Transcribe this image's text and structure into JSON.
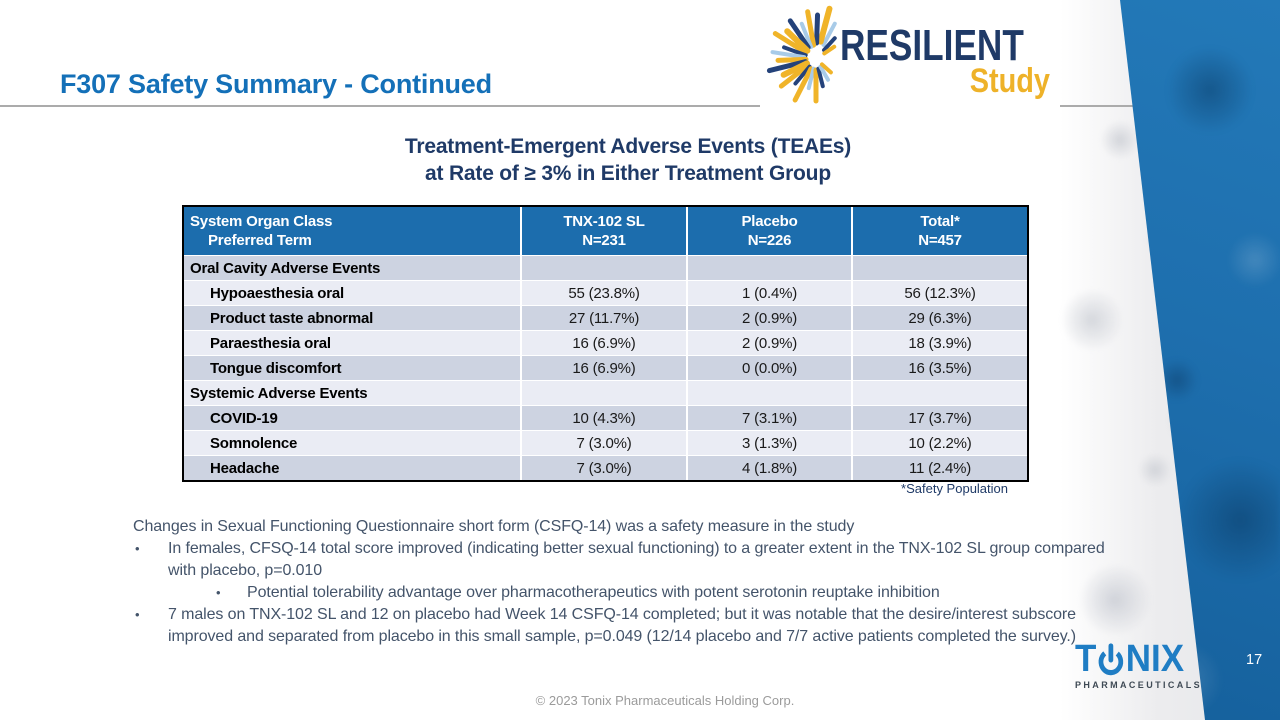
{
  "slide": {
    "title": "F307 Safety Summary - Continued",
    "page_number": "17",
    "footer": "© 2023 Tonix Pharmaceuticals Holding Corp."
  },
  "resilient_logo": {
    "name": "RESILIENT",
    "sub": "Study"
  },
  "table": {
    "title_line1": "Treatment-Emergent Adverse Events (TEAEs)",
    "title_line2": "at Rate of ≥ 3% in Either Treatment Group",
    "header": {
      "col1_line1": "System Organ Class",
      "col1_line2": "Preferred Term",
      "cols": [
        {
          "line1": "TNX-102 SL",
          "line2": "N=231"
        },
        {
          "line1": "Placebo",
          "line2": "N=226"
        },
        {
          "line1": "Total*",
          "line2": "N=457"
        }
      ]
    },
    "rows": [
      {
        "type": "section",
        "label": "Oral Cavity Adverse Events",
        "tnx": "",
        "placebo": "",
        "total": ""
      },
      {
        "type": "term",
        "label": "Hypoaesthesia oral",
        "tnx": "55 (23.8%)",
        "placebo": "1 (0.4%)",
        "total": "56 (12.3%)"
      },
      {
        "type": "term",
        "label": "Product taste abnormal",
        "tnx": "27 (11.7%)",
        "placebo": "2 (0.9%)",
        "total": "29 (6.3%)"
      },
      {
        "type": "term",
        "label": "Paraesthesia oral",
        "tnx": "16 (6.9%)",
        "placebo": "2 (0.9%)",
        "total": "18 (3.9%)"
      },
      {
        "type": "term",
        "label": "Tongue discomfort",
        "tnx": "16 (6.9%)",
        "placebo": "0 (0.0%)",
        "total": "16 (3.5%)"
      },
      {
        "type": "section",
        "label": "Systemic Adverse Events",
        "tnx": "",
        "placebo": "",
        "total": ""
      },
      {
        "type": "term",
        "label": "COVID-19",
        "tnx": "10 (4.3%)",
        "placebo": "7 (3.1%)",
        "total": "17 (3.7%)"
      },
      {
        "type": "term",
        "label": "Somnolence",
        "tnx": "7 (3.0%)",
        "placebo": "3 (1.3%)",
        "total": "10 (2.2%)"
      },
      {
        "type": "term",
        "label": "Headache",
        "tnx": "7 (3.0%)",
        "placebo": "4 (1.8%)",
        "total": "11 (2.4%)"
      }
    ],
    "footnote": "*Safety Population"
  },
  "notes": {
    "intro": "Changes in Sexual Functioning Questionnaire short form (CSFQ-14) was a safety measure in the study",
    "bullets": [
      {
        "level": 1,
        "text": "In females, CFSQ-14 total score improved (indicating better sexual functioning) to a greater extent in the TNX-102 SL group compared with placebo, p=0.010"
      },
      {
        "level": 2,
        "text": "Potential tolerability advantage over pharmacotherapeutics with potent serotonin reuptake inhibition"
      },
      {
        "level": 1,
        "text": "7 males on TNX-102 SL and 12 on placebo had Week 14 CSFQ-14 completed; but it was notable that the desire/interest subscore improved and separated from placebo in this small sample, p=0.049 (12/14 placebo and 7/7 active patients completed the survey.)"
      }
    ]
  },
  "tonix_logo": {
    "left": "T",
    "right": "NIX",
    "sub": "PHARMACEUTICALS"
  },
  "colors": {
    "title_blue": "#1470b8",
    "navy": "#1f3a67",
    "header_blue": "#1c6dad",
    "row_dark": "#cdd3e1",
    "row_light": "#eaecf4",
    "note_gray": "#44546a",
    "band_blue": "#2379b8",
    "gold": "#eeb229",
    "tonix_blue": "#1f7dc4",
    "footer_gray": "#9b9b9b"
  }
}
